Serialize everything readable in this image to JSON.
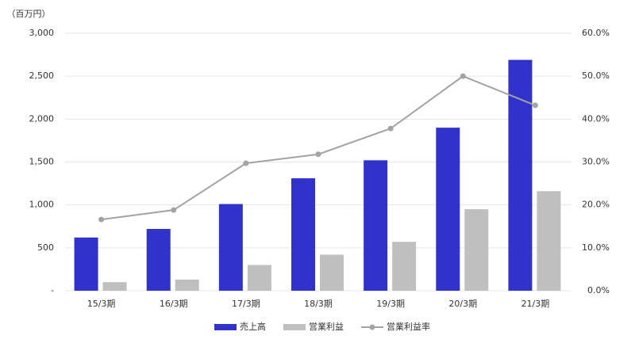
{
  "chart_data": {
    "type": "bar_line",
    "y_label": "（百万円）",
    "categories": [
      "15/3期",
      "16/3期",
      "17/3期",
      "18/3期",
      "19/3期",
      "20/3期",
      "21/3期"
    ],
    "series": [
      {
        "name": "売上高",
        "type": "bar",
        "color": "#3131cb",
        "values": [
          620,
          720,
          1010,
          1310,
          1520,
          1900,
          2690
        ]
      },
      {
        "name": "営業利益",
        "type": "bar",
        "color": "#bfbfbf",
        "values": [
          100,
          130,
          300,
          420,
          570,
          950,
          1160
        ]
      },
      {
        "name": "営業利益率",
        "type": "line",
        "axis": "y2",
        "color": "#a3a3a3",
        "values": [
          16.6,
          18.8,
          29.7,
          31.8,
          37.8,
          50.0,
          43.2
        ]
      }
    ],
    "ylim": [
      0,
      3000
    ],
    "yticks": [
      {
        "value": 0,
        "label": "-"
      },
      {
        "value": 500,
        "label": "500"
      },
      {
        "value": 1000,
        "label": "1,000"
      },
      {
        "value": 1500,
        "label": "1,500"
      },
      {
        "value": 2000,
        "label": "2,000"
      },
      {
        "value": 2500,
        "label": "2,500"
      },
      {
        "value": 3000,
        "label": "3,000"
      }
    ],
    "y2lim": [
      0,
      60
    ],
    "y2ticks": [
      {
        "value": 0,
        "label": "0.0%"
      },
      {
        "value": 10,
        "label": "10.0%"
      },
      {
        "value": 20,
        "label": "20.0%"
      },
      {
        "value": 30,
        "label": "30.0%"
      },
      {
        "value": 40,
        "label": "40.0%"
      },
      {
        "value": 50,
        "label": "50.0%"
      },
      {
        "value": 60,
        "label": "60.0%"
      }
    ],
    "grid": true
  }
}
